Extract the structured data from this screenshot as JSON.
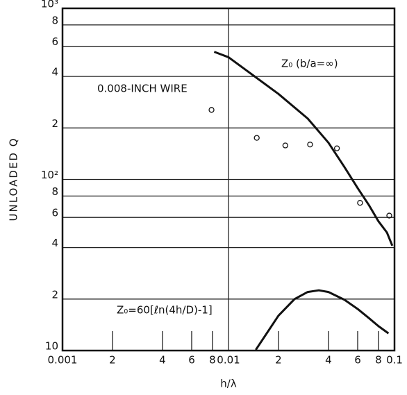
{
  "chart_data": {
    "type": "line",
    "x_label": "h/λ",
    "y_label": "UNLOADED Q",
    "xlog": true,
    "ylog": true,
    "grid": true,
    "xlim": [
      0.001,
      0.1
    ],
    "ylim": [
      10,
      1000
    ],
    "xticks": [
      0.001,
      {
        "value": 0.002,
        "label": "2"
      },
      {
        "value": 0.004,
        "label": "4"
      },
      {
        "value": 0.006,
        "label": "6"
      },
      {
        "value": 0.008,
        "label": "8"
      },
      0.01,
      {
        "value": 0.02,
        "label": "2"
      },
      {
        "value": 0.04,
        "label": "4"
      },
      {
        "value": 0.06,
        "label": "6"
      },
      {
        "value": 0.08,
        "label": "8"
      },
      0.1
    ],
    "yticks": [
      10,
      {
        "value": 20,
        "label": "2"
      },
      {
        "value": 40,
        "label": "4"
      },
      {
        "value": 60,
        "label": "6"
      },
      {
        "value": 80,
        "label": "8"
      },
      {
        "value": 100,
        "label": "10²"
      },
      {
        "value": 200,
        "label": "2"
      },
      {
        "value": 400,
        "label": "4"
      },
      {
        "value": 600,
        "label": "6"
      },
      {
        "value": 800,
        "label": "8"
      },
      {
        "value": 1000,
        "label": "10³"
      }
    ],
    "annotations": [
      "Z₀ (b/a=∞)",
      "0.008-INCH WIRE",
      "Z₀=60[ℓn(4h/D)-1]"
    ],
    "series": [
      {
        "type": "line",
        "color": "#111111",
        "x": [
          0.0082,
          0.01,
          0.02,
          0.03,
          0.04,
          0.05,
          0.06,
          0.07,
          0.08,
          0.09,
          0.097
        ],
        "values": [
          557,
          518,
          316,
          227,
          164,
          118,
          89,
          71,
          57,
          49,
          41
        ]
      },
      {
        "type": "scatter",
        "color": "#111111",
        "x": [
          0.0079,
          0.0148,
          0.022,
          0.031,
          0.045,
          0.062,
          0.093
        ],
        "values": [
          255,
          175,
          158,
          160,
          152,
          73,
          61.5
        ]
      },
      {
        "type": "line",
        "color": "#111111",
        "x": [
          0.0146,
          0.02,
          0.025,
          0.03,
          0.035,
          0.04,
          0.05,
          0.06,
          0.07,
          0.08,
          0.092
        ],
        "values": [
          10.1,
          16,
          20,
          22,
          22.5,
          22,
          19.8,
          17.5,
          15.5,
          13.9,
          12.6
        ]
      }
    ]
  }
}
